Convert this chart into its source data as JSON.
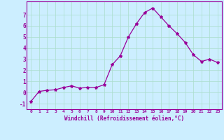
{
  "x": [
    0,
    1,
    2,
    3,
    4,
    5,
    6,
    7,
    8,
    9,
    10,
    11,
    12,
    13,
    14,
    15,
    16,
    17,
    18,
    19,
    20,
    21,
    22,
    23
  ],
  "y": [
    -0.8,
    0.1,
    0.2,
    0.25,
    0.45,
    0.6,
    0.4,
    0.45,
    0.45,
    0.7,
    2.5,
    3.3,
    5.0,
    6.2,
    7.2,
    7.6,
    6.8,
    6.0,
    5.3,
    4.5,
    3.4,
    2.8,
    3.0,
    2.7
  ],
  "line_color": "#990099",
  "marker": "*",
  "marker_size": 3,
  "bg_color": "#cceeff",
  "grid_color": "#aaddcc",
  "xlabel": "Windchill (Refroidissement éolien,°C)",
  "xlabel_color": "#990099",
  "tick_color": "#990099",
  "xlim": [
    -0.5,
    23.5
  ],
  "ylim": [
    -1.5,
    8.2
  ],
  "yticks": [
    -1,
    0,
    1,
    2,
    3,
    4,
    5,
    6,
    7
  ],
  "xticks": [
    0,
    1,
    2,
    3,
    4,
    5,
    6,
    7,
    8,
    9,
    10,
    11,
    12,
    13,
    14,
    15,
    16,
    17,
    18,
    19,
    20,
    21,
    22,
    23
  ],
  "xtick_labels": [
    "0",
    "1",
    "2",
    "3",
    "4",
    "5",
    "6",
    "7",
    "8",
    "9",
    "10",
    "11",
    "12",
    "13",
    "14",
    "15",
    "16",
    "17",
    "18",
    "19",
    "20",
    "21",
    "22",
    "23"
  ]
}
